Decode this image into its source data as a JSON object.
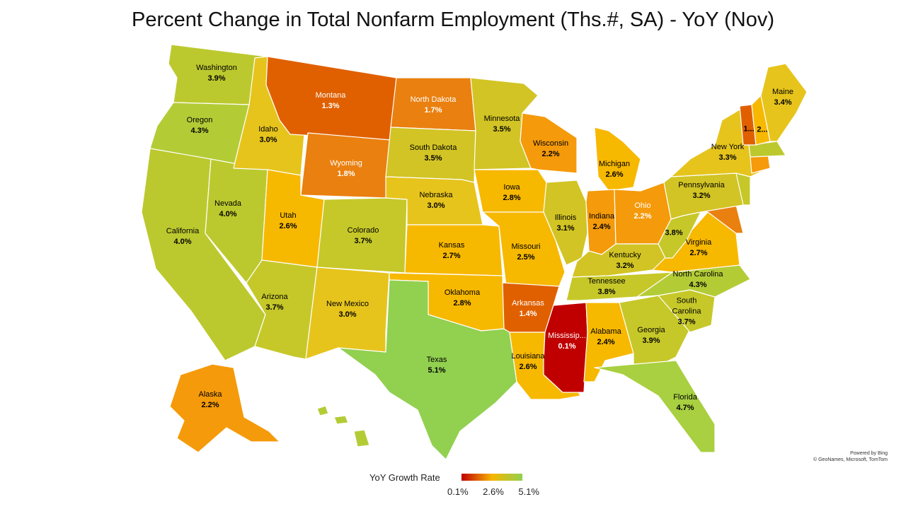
{
  "title": "Percent Change in Total Nonfarm Employment (Ths.#, SA) - YoY (Nov)",
  "credit": {
    "line1": "Powered by Bing",
    "line2": "© GeoNames, Microsoft, TomTom"
  },
  "legend": {
    "title": "YoY Growth Rate",
    "min": "0.1%",
    "mid": "2.6%",
    "max": "5.1%",
    "colors": {
      "low": "#c00000",
      "mid": "#f7b500",
      "high": "#92d050"
    }
  },
  "states": {
    "WA": {
      "name": "Washington",
      "value": "3.9%"
    },
    "OR": {
      "name": "Oregon",
      "value": "4.3%"
    },
    "CA": {
      "name": "California",
      "value": "4.0%"
    },
    "NV": {
      "name": "Nevada",
      "value": "4.0%"
    },
    "ID": {
      "name": "Idaho",
      "value": "3.0%"
    },
    "MT": {
      "name": "Montana",
      "value": "1.3%"
    },
    "WY": {
      "name": "Wyoming",
      "value": "1.8%"
    },
    "UT": {
      "name": "Utah",
      "value": "2.6%"
    },
    "AZ": {
      "name": "Arizona",
      "value": "3.7%"
    },
    "CO": {
      "name": "Colorado",
      "value": "3.7%"
    },
    "NM": {
      "name": "New Mexico",
      "value": "3.0%"
    },
    "ND": {
      "name": "North Dakota",
      "value": "1.7%"
    },
    "SD": {
      "name": "South Dakota",
      "value": "3.5%"
    },
    "NE": {
      "name": "Nebraska",
      "value": "3.0%"
    },
    "KS": {
      "name": "Kansas",
      "value": "2.7%"
    },
    "OK": {
      "name": "Oklahoma",
      "value": "2.8%"
    },
    "TX": {
      "name": "Texas",
      "value": "5.1%"
    },
    "MN": {
      "name": "Minnesota",
      "value": "3.5%"
    },
    "IA": {
      "name": "Iowa",
      "value": "2.8%"
    },
    "MO": {
      "name": "Missouri",
      "value": "2.5%"
    },
    "AR": {
      "name": "Arkansas",
      "value": "1.4%"
    },
    "LA": {
      "name": "Louisiana",
      "value": "2.6%"
    },
    "WI": {
      "name": "Wisconsin",
      "value": "2.2%"
    },
    "IL": {
      "name": "Illinois",
      "value": "3.1%"
    },
    "MI": {
      "name": "Michigan",
      "value": "2.6%"
    },
    "IN": {
      "name": "Indiana",
      "value": "2.4%"
    },
    "OH": {
      "name": "Ohio",
      "value": "2.2%"
    },
    "KY": {
      "name": "Kentucky",
      "value": "3.2%"
    },
    "TN": {
      "name": "Tennessee",
      "value": "3.8%"
    },
    "MS": {
      "name": "Mississip...",
      "value": "0.1%"
    },
    "AL": {
      "name": "Alabama",
      "value": "2.4%"
    },
    "GA": {
      "name": "Georgia",
      "value": "3.9%"
    },
    "FL": {
      "name": "Florida",
      "value": "4.7%"
    },
    "SC": {
      "name": "South Carolina",
      "value": "3.7%"
    },
    "NC": {
      "name": "North Carolina",
      "value": "4.3%"
    },
    "VA": {
      "name": "Virginia",
      "value": "2.7%"
    },
    "WV": {
      "name": "",
      "value": "3.8%"
    },
    "PA": {
      "name": "Pennsylvania",
      "value": "3.2%"
    },
    "NY": {
      "name": "New York",
      "value": "3.3%"
    },
    "ME": {
      "name": "Maine",
      "value": "3.4%"
    },
    "VT": {
      "name": "",
      "value": "1..."
    },
    "NH": {
      "name": "",
      "value": "2..."
    },
    "AK": {
      "name": "Alaska",
      "value": "2.2%"
    }
  }
}
